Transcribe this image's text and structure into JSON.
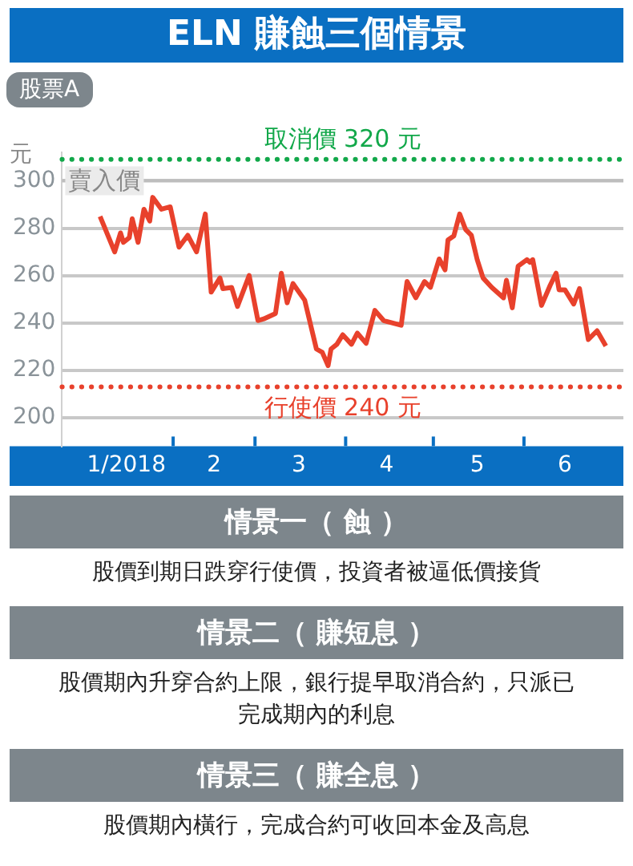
{
  "chart_data": {
    "type": "line",
    "title": "ELN 賺蝕三個情景",
    "subtitle": "股票A",
    "ylabel": "元",
    "x": [
      "2018-01-07",
      "2018-01-12",
      "2018-01-14",
      "2018-01-15",
      "2018-01-17",
      "2018-01-18",
      "2018-01-20",
      "2018-01-22",
      "2018-01-24",
      "2018-01-25",
      "2018-01-28",
      "2018-01-31",
      "2018-02-03",
      "2018-02-06",
      "2018-02-09",
      "2018-02-12",
      "2018-02-14",
      "2018-02-17",
      "2018-02-18",
      "2018-02-21",
      "2018-02-23",
      "2018-02-27",
      "2018-03-02",
      "2018-03-04",
      "2018-03-08",
      "2018-03-10",
      "2018-03-12",
      "2018-03-14",
      "2018-03-18",
      "2018-03-22",
      "2018-03-24",
      "2018-03-26",
      "2018-03-27",
      "2018-03-29",
      "2018-03-31",
      "2018-04-03",
      "2018-04-05",
      "2018-04-08",
      "2018-04-11",
      "2018-04-14",
      "2018-04-20",
      "2018-04-22",
      "2018-04-25",
      "2018-04-28",
      "2018-04-30",
      "2018-05-03",
      "2018-05-05",
      "2018-05-06",
      "2018-05-08",
      "2018-05-10",
      "2018-05-12",
      "2018-05-14",
      "2018-05-16",
      "2018-05-18",
      "2018-05-21",
      "2018-05-25",
      "2018-05-26",
      "2018-05-28",
      "2018-05-30",
      "2018-06-02",
      "2018-06-03",
      "2018-06-04",
      "2018-06-07",
      "2018-06-10",
      "2018-06-12",
      "2018-06-13",
      "2018-06-15",
      "2018-06-18",
      "2018-06-20",
      "2018-06-23",
      "2018-06-26",
      "2018-06-29"
    ],
    "series": [
      {
        "color": "#e8412c",
        "values": [
          285,
          270,
          278,
          274,
          276,
          284,
          274,
          288,
          283,
          293,
          288,
          289,
          272,
          277,
          270,
          286,
          253,
          259,
          254.5,
          255,
          247,
          260,
          241,
          241.7,
          244,
          261,
          248.5,
          256.6,
          249.6,
          229,
          227.6,
          222,
          229,
          231,
          235,
          231,
          235.7,
          231.4,
          245.3,
          241,
          239,
          257.5,
          250.6,
          257.5,
          255,
          267,
          262.4,
          275,
          276.7,
          286,
          279.5,
          277,
          266.7,
          259,
          255,
          250.6,
          258,
          246.4,
          264,
          266.7,
          265.6,
          266.7,
          247.4,
          256,
          261,
          254,
          254,
          248,
          254.5,
          233,
          236.7,
          230.3
        ]
      }
    ],
    "xlim": [
      "2017-12-25",
      "2018-07-05"
    ],
    "xticks": [
      {
        "value": "2018-01-16",
        "label": "1/2018"
      },
      {
        "value": "2018-02-01",
        "label": null
      },
      {
        "value": "2018-02-15",
        "label": "2"
      },
      {
        "value": "2018-03-01",
        "label": null
      },
      {
        "value": "2018-03-16",
        "label": "3"
      },
      {
        "value": "2018-04-01",
        "label": null
      },
      {
        "value": "2018-04-15",
        "label": "4"
      },
      {
        "value": "2018-05-01",
        "label": null
      },
      {
        "value": "2018-05-16",
        "label": "5"
      },
      {
        "value": "2018-06-01",
        "label": null
      },
      {
        "value": "2018-06-15",
        "label": "6"
      }
    ],
    "ylim": [
      188,
      312
    ],
    "yticks": [
      200,
      220,
      240,
      260,
      280,
      300
    ],
    "ref_lines": [
      {
        "axis": "y",
        "value": 309,
        "label": "取消價 320 元",
        "color": "#12a84a",
        "line_style": "dotted"
      },
      {
        "axis": "y",
        "value": 300,
        "label": "賣入價",
        "color": "#bdbdbd",
        "line_style": "solid"
      },
      {
        "axis": "y",
        "value": 213,
        "label": "行使價 240 元",
        "color": "#e8412c",
        "line_style": "dotted"
      }
    ],
    "grid": "y",
    "legend": false,
    "marker": "none",
    "line_style": "solid",
    "annotations": [
      "情景一（ 蝕 ）",
      "股價到期日跌穿行使價，投資者被逼低價接貨",
      "情景二（ 賺短息 ）",
      "股價期內升穿合約上限，銀行提早取消合約，只派已完成期內的利息",
      "情景三（ 賺全息 ）",
      "股價期內橫行，完成合約可收回本金及高息"
    ]
  }
}
